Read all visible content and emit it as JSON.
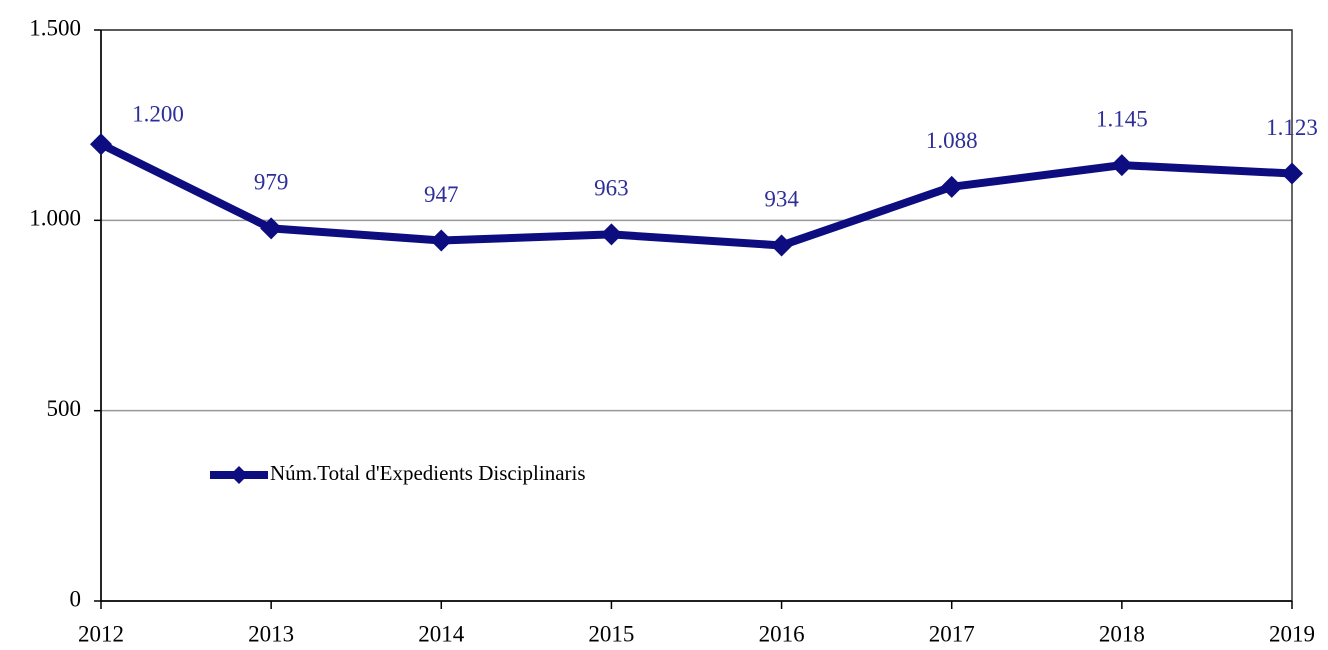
{
  "chart_data": {
    "type": "line",
    "categories": [
      "2012",
      "2013",
      "2014",
      "2015",
      "2016",
      "2017",
      "2018",
      "2019"
    ],
    "series": [
      {
        "name": "Núm.Total d'Expedients Disciplinaris",
        "color": "#0d0d80",
        "values": [
          1200,
          979,
          947,
          963,
          934,
          1088,
          1145,
          1123
        ],
        "value_labels": [
          "1.200",
          "979",
          "947",
          "963",
          "934",
          "1.088",
          "1.145",
          "1.123"
        ]
      }
    ],
    "ylim": [
      0,
      1500
    ],
    "yticks": [
      0,
      500,
      {
        "value": 1000,
        "label": "1.000"
      },
      {
        "value": 1500,
        "label": "1.500"
      }
    ],
    "grid": true,
    "legend": "left"
  }
}
